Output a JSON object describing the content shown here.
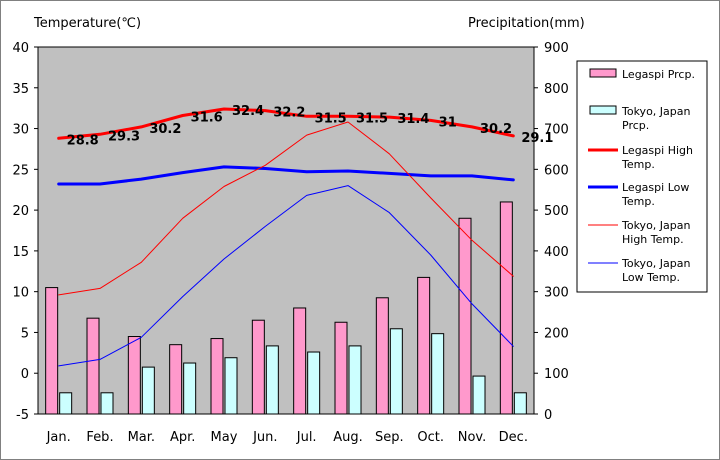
{
  "chart_data": {
    "type": "bar+line",
    "categories": [
      "Jan.",
      "Feb.",
      "Mar.",
      "Apr.",
      "May",
      "Jun.",
      "Jul.",
      "Aug.",
      "Sep.",
      "Oct.",
      "Nov.",
      "Dec."
    ],
    "left_axis": {
      "title": "Temperature(℃)",
      "range": [
        -5,
        40
      ],
      "ticks": [
        -5,
        0,
        5,
        10,
        15,
        20,
        25,
        30,
        35,
        40
      ]
    },
    "right_axis": {
      "title": "Precipitation(mm)",
      "range": [
        0,
        900
      ],
      "ticks": [
        0,
        100,
        200,
        300,
        400,
        500,
        600,
        700,
        800,
        900
      ]
    },
    "grid": false,
    "plot_background": "#c0c0c0",
    "legend_position": "right",
    "bar_series": [
      {
        "name": "Legaspi Prcp.",
        "color": "#ff99cc",
        "axis": "right",
        "values": [
          310,
          235,
          190,
          170,
          185,
          230,
          260,
          225,
          285,
          335,
          480,
          520
        ]
      },
      {
        "name": "Tokyo, Japan Prcp.",
        "color": "#ccffff",
        "axis": "right",
        "values": [
          52,
          52,
          115,
          125,
          138,
          167,
          152,
          167,
          209,
          197,
          93,
          52
        ]
      }
    ],
    "line_series": [
      {
        "name": "Legaspi High Temp.",
        "color": "#ff0000",
        "width": "thick",
        "axis": "left",
        "values": [
          28.8,
          29.3,
          30.2,
          31.6,
          32.4,
          32.2,
          31.5,
          31.5,
          31.4,
          31,
          30.2,
          29.1
        ],
        "labels": [
          "28.8",
          "29.3",
          "30.2",
          "31.6",
          "32.4",
          "32.2",
          "31.5",
          "31.5",
          "31.4",
          "31",
          "30.2",
          "29.1"
        ]
      },
      {
        "name": "Legaspi Low Temp.",
        "color": "#0000ff",
        "width": "thick",
        "axis": "left",
        "values": [
          23.2,
          23.2,
          23.8,
          24.6,
          25.3,
          25.1,
          24.7,
          24.8,
          24.5,
          24.2,
          24.2,
          23.7
        ]
      },
      {
        "name": "Tokyo, Japan High Temp.",
        "color": "#ff0000",
        "width": "thin",
        "axis": "left",
        "values": [
          9.6,
          10.4,
          13.6,
          19.0,
          22.9,
          25.5,
          29.2,
          30.8,
          26.9,
          21.5,
          16.3,
          11.9
        ]
      },
      {
        "name": "Tokyo, Japan Low Temp.",
        "color": "#0000ff",
        "width": "thin",
        "axis": "left",
        "values": [
          0.9,
          1.7,
          4.4,
          9.4,
          14.0,
          18.0,
          21.8,
          23.0,
          19.7,
          14.5,
          8.5,
          3.3
        ]
      }
    ],
    "legend": [
      {
        "lines": [
          "Legaspi Prcp."
        ],
        "kind": "bar",
        "color": "#ff99cc"
      },
      {
        "lines": [
          "Tokyo, Japan",
          "Prcp."
        ],
        "kind": "bar",
        "color": "#ccffff"
      },
      {
        "lines": [
          "Legaspi High",
          "Temp."
        ],
        "kind": "line",
        "color": "#ff0000",
        "width": "thick"
      },
      {
        "lines": [
          "Legaspi Low",
          "Temp."
        ],
        "kind": "line",
        "color": "#0000ff",
        "width": "thick"
      },
      {
        "lines": [
          "Tokyo, Japan",
          "High Temp."
        ],
        "kind": "line",
        "color": "#ff0000",
        "width": "thin"
      },
      {
        "lines": [
          "Tokyo, Japan",
          "Low Temp."
        ],
        "kind": "line",
        "color": "#0000ff",
        "width": "thin"
      }
    ]
  }
}
